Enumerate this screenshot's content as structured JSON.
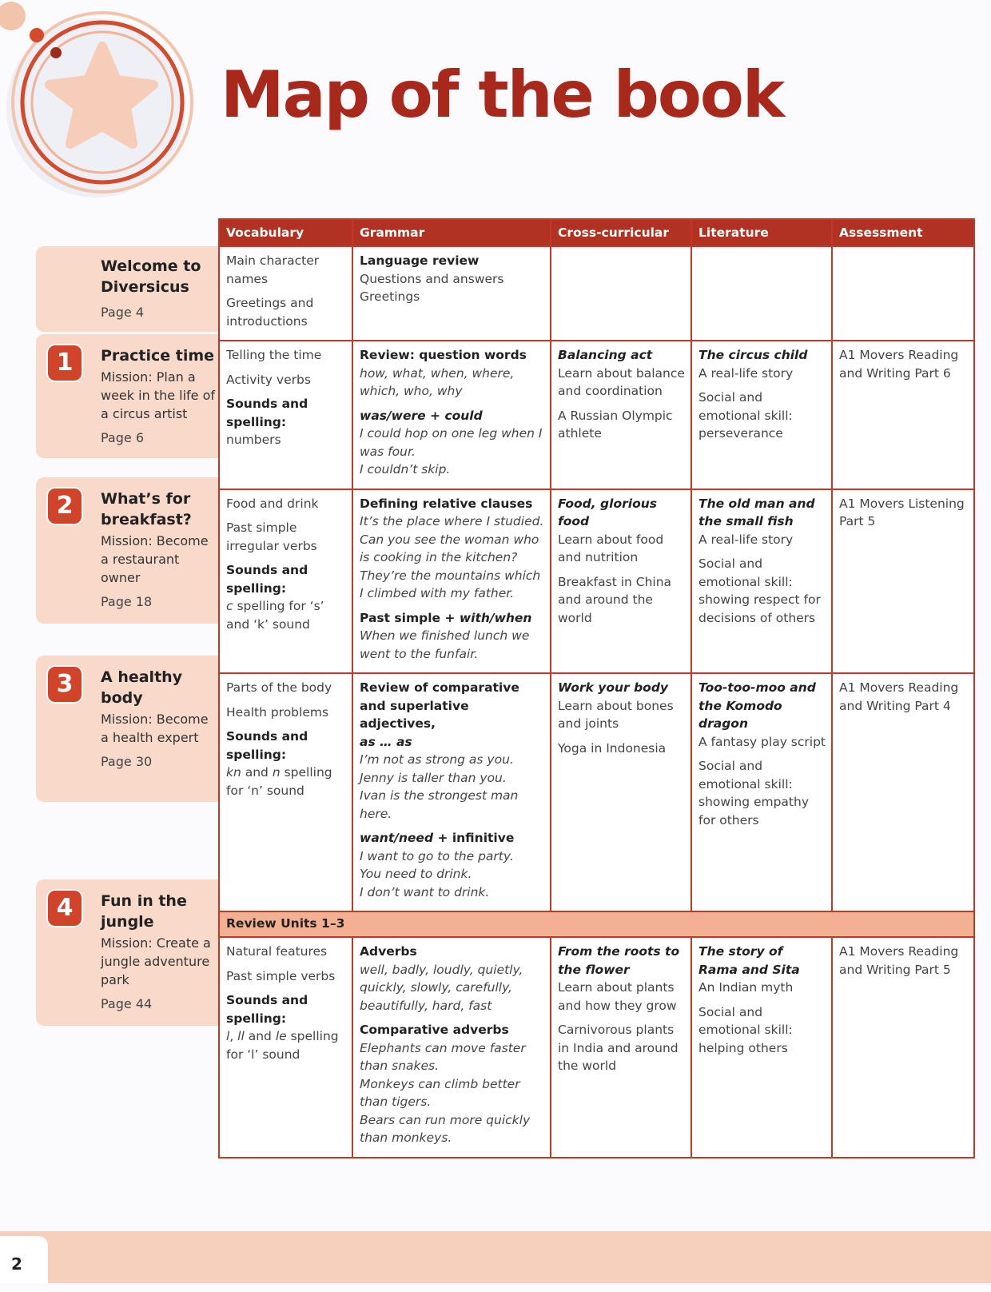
{
  "page_title": "Map of the book",
  "page_number": "2",
  "colors": {
    "accent": "#b13222",
    "tab_bg": "#f8d9ca",
    "review_bg": "#f4b093",
    "badge": "#d1442a"
  },
  "columns": [
    "Vocabulary",
    "Grammar",
    "Cross-curricular",
    "Literature",
    "Assessment"
  ],
  "units": [
    {
      "number": "",
      "title": "Welcome to Diversicus",
      "mission": "",
      "page": "Page 4"
    },
    {
      "number": "1",
      "title": "Practice time",
      "mission": "Mission: Plan a week in the life of a circus artist",
      "page": "Page 6"
    },
    {
      "number": "2",
      "title": "What’s for breakfast?",
      "mission": "Mission: Become a restaurant owner",
      "page": "Page 18"
    },
    {
      "number": "3",
      "title": "A healthy body",
      "mission": "Mission: Become a health expert",
      "page": "Page 30"
    },
    {
      "number": "4",
      "title": "Fun in the jungle",
      "mission": "Mission: Create a jungle adventure park",
      "page": "Page 44"
    }
  ],
  "review_label": "Review Units 1–3",
  "rows": [
    [
      [
        [
          [
            [
              "Main character names",
              "r"
            ]
          ]
        ],
        [
          [
            [
              "Greetings and introductions",
              "r"
            ]
          ]
        ]
      ],
      [
        [
          [
            [
              "Language review",
              "b"
            ]
          ],
          [
            [
              "Questions and answers",
              "r"
            ]
          ],
          [
            [
              "Greetings",
              "r"
            ]
          ]
        ]
      ],
      [],
      [],
      []
    ],
    [
      [
        [
          [
            [
              "Telling the time",
              "r"
            ]
          ]
        ],
        [
          [
            [
              "Activity verbs",
              "r"
            ]
          ]
        ],
        [
          [
            [
              "Sounds and spelling:",
              "b"
            ]
          ],
          [
            [
              "numbers",
              "r"
            ]
          ]
        ]
      ],
      [
        [
          [
            [
              "Review: question words",
              "b"
            ]
          ],
          [
            [
              "how, what, when, where, which, who, why",
              "i"
            ]
          ]
        ],
        [
          [
            [
              "was/were",
              "bi"
            ],
            [
              " + ",
              "b"
            ],
            [
              "could",
              "bi"
            ]
          ],
          [
            [
              "I could hop on one leg when I was four.",
              "i"
            ]
          ],
          [
            [
              "I couldn’t skip.",
              "i"
            ]
          ]
        ]
      ],
      [
        [
          [
            [
              "Balancing act",
              "bi"
            ]
          ],
          [
            [
              "Learn about balance and coordination",
              "r"
            ]
          ]
        ],
        [
          [
            [
              "A Russian Olympic athlete",
              "r"
            ]
          ]
        ]
      ],
      [
        [
          [
            [
              "The circus child",
              "bi"
            ]
          ],
          [
            [
              "A real-life story",
              "r"
            ]
          ]
        ],
        [
          [
            [
              "Social and emotional skill: perseverance",
              "r"
            ]
          ]
        ]
      ],
      [
        [
          [
            [
              "A1 Movers Reading and Writing Part 6",
              "r"
            ]
          ]
        ]
      ]
    ],
    [
      [
        [
          [
            [
              "Food and drink",
              "r"
            ]
          ]
        ],
        [
          [
            [
              "Past simple irregular verbs",
              "r"
            ]
          ]
        ],
        [
          [
            [
              "Sounds and spelling:",
              "b"
            ]
          ],
          [
            [
              "c",
              "i"
            ],
            [
              " spelling for ‘s’ and ‘k’ sound",
              "r"
            ]
          ]
        ]
      ],
      [
        [
          [
            [
              "Defining relative clauses",
              "b"
            ]
          ],
          [
            [
              "It’s the place where I studied.",
              "i"
            ]
          ],
          [
            [
              "Can you see the woman who is cooking in the kitchen?",
              "i"
            ]
          ],
          [
            [
              "They’re the mountains which I climbed with my father.",
              "i"
            ]
          ]
        ],
        [
          [
            [
              "Past simple + ",
              "b"
            ],
            [
              "with/when",
              "bi"
            ]
          ],
          [
            [
              "When we finished lunch we went to the funfair.",
              "i"
            ]
          ]
        ]
      ],
      [
        [
          [
            [
              "Food, glorious food",
              "bi"
            ]
          ],
          [
            [
              "Learn about food and nutrition",
              "r"
            ]
          ]
        ],
        [
          [
            [
              "Breakfast in China and around the world",
              "r"
            ]
          ]
        ]
      ],
      [
        [
          [
            [
              "The old man and the small fish",
              "bi"
            ]
          ],
          [
            [
              "A real-life story",
              "r"
            ]
          ]
        ],
        [
          [
            [
              "Social and emotional skill: showing respect for decisions of others",
              "r"
            ]
          ]
        ]
      ],
      [
        [
          [
            [
              "A1 Movers Listening Part 5",
              "r"
            ]
          ]
        ]
      ]
    ],
    [
      [
        [
          [
            [
              "Parts of the body",
              "r"
            ]
          ]
        ],
        [
          [
            [
              "Health problems",
              "r"
            ]
          ]
        ],
        [
          [
            [
              "Sounds and spelling:",
              "b"
            ]
          ],
          [
            [
              "kn",
              "i"
            ],
            [
              " and ",
              "r"
            ],
            [
              "n",
              "i"
            ],
            [
              " spelling for ‘n’ sound",
              "r"
            ]
          ]
        ]
      ],
      [
        [
          [
            [
              "Review of comparative and superlative adjectives,",
              "b"
            ]
          ],
          [
            [
              "as … as",
              "bi"
            ]
          ],
          [
            [
              "I’m not as strong as you.",
              "i"
            ]
          ],
          [
            [
              "Jenny is taller than you.",
              "i"
            ]
          ],
          [
            [
              "Ivan is the strongest man here.",
              "i"
            ]
          ]
        ],
        [
          [
            [
              "want/need",
              "bi"
            ],
            [
              " + infinitive",
              "b"
            ]
          ],
          [
            [
              "I want to go to the party.",
              "i"
            ]
          ],
          [
            [
              "You need to drink.",
              "i"
            ]
          ],
          [
            [
              "I don’t want to drink.",
              "i"
            ]
          ]
        ]
      ],
      [
        [
          [
            [
              "Work your body",
              "bi"
            ]
          ],
          [
            [
              "Learn about bones and joints",
              "r"
            ]
          ]
        ],
        [
          [
            [
              "Yoga in Indonesia",
              "r"
            ]
          ]
        ]
      ],
      [
        [
          [
            [
              "Too-too-moo and the Komodo dragon",
              "bi"
            ]
          ],
          [
            [
              "A fantasy play script",
              "r"
            ]
          ]
        ],
        [
          [
            [
              "Social and emotional skill: showing empathy for others",
              "r"
            ]
          ]
        ]
      ],
      [
        [
          [
            [
              "A1 Movers Reading and Writing Part 4",
              "r"
            ]
          ]
        ]
      ]
    ],
    [
      [
        [
          [
            [
              "Natural features",
              "r"
            ]
          ]
        ],
        [
          [
            [
              "Past simple verbs",
              "r"
            ]
          ]
        ],
        [
          [
            [
              "Sounds and spelling:",
              "b"
            ]
          ],
          [
            [
              "l",
              "i"
            ],
            [
              ", ",
              "r"
            ],
            [
              "ll",
              "i"
            ],
            [
              " and ",
              "r"
            ],
            [
              "le",
              "i"
            ],
            [
              " spelling for ‘l’ sound",
              "r"
            ]
          ]
        ]
      ],
      [
        [
          [
            [
              "Adverbs",
              "b"
            ]
          ],
          [
            [
              "well, badly, loudly, quietly, quickly, slowly, carefully, beautifully, hard, fast",
              "i"
            ]
          ]
        ],
        [
          [
            [
              "Comparative adverbs",
              "b"
            ]
          ],
          [
            [
              "Elephants can move faster than snakes.",
              "i"
            ]
          ],
          [
            [
              "Monkeys can climb better than tigers.",
              "i"
            ]
          ],
          [
            [
              "Bears can run more quickly than monkeys.",
              "i"
            ]
          ]
        ]
      ],
      [
        [
          [
            [
              "From the roots to the flower",
              "bi"
            ]
          ],
          [
            [
              "Learn about plants and how they grow",
              "r"
            ]
          ]
        ],
        [
          [
            [
              "Carnivorous plants in India and around the world",
              "r"
            ]
          ]
        ]
      ],
      [
        [
          [
            [
              "The story of Rama and Sita",
              "bi"
            ]
          ],
          [
            [
              "An Indian myth",
              "r"
            ]
          ]
        ],
        [
          [
            [
              "Social and emotional skill: helping others",
              "r"
            ]
          ]
        ]
      ],
      [
        [
          [
            [
              "A1 Movers Reading and Writing Part 5",
              "r"
            ]
          ]
        ]
      ]
    ]
  ]
}
